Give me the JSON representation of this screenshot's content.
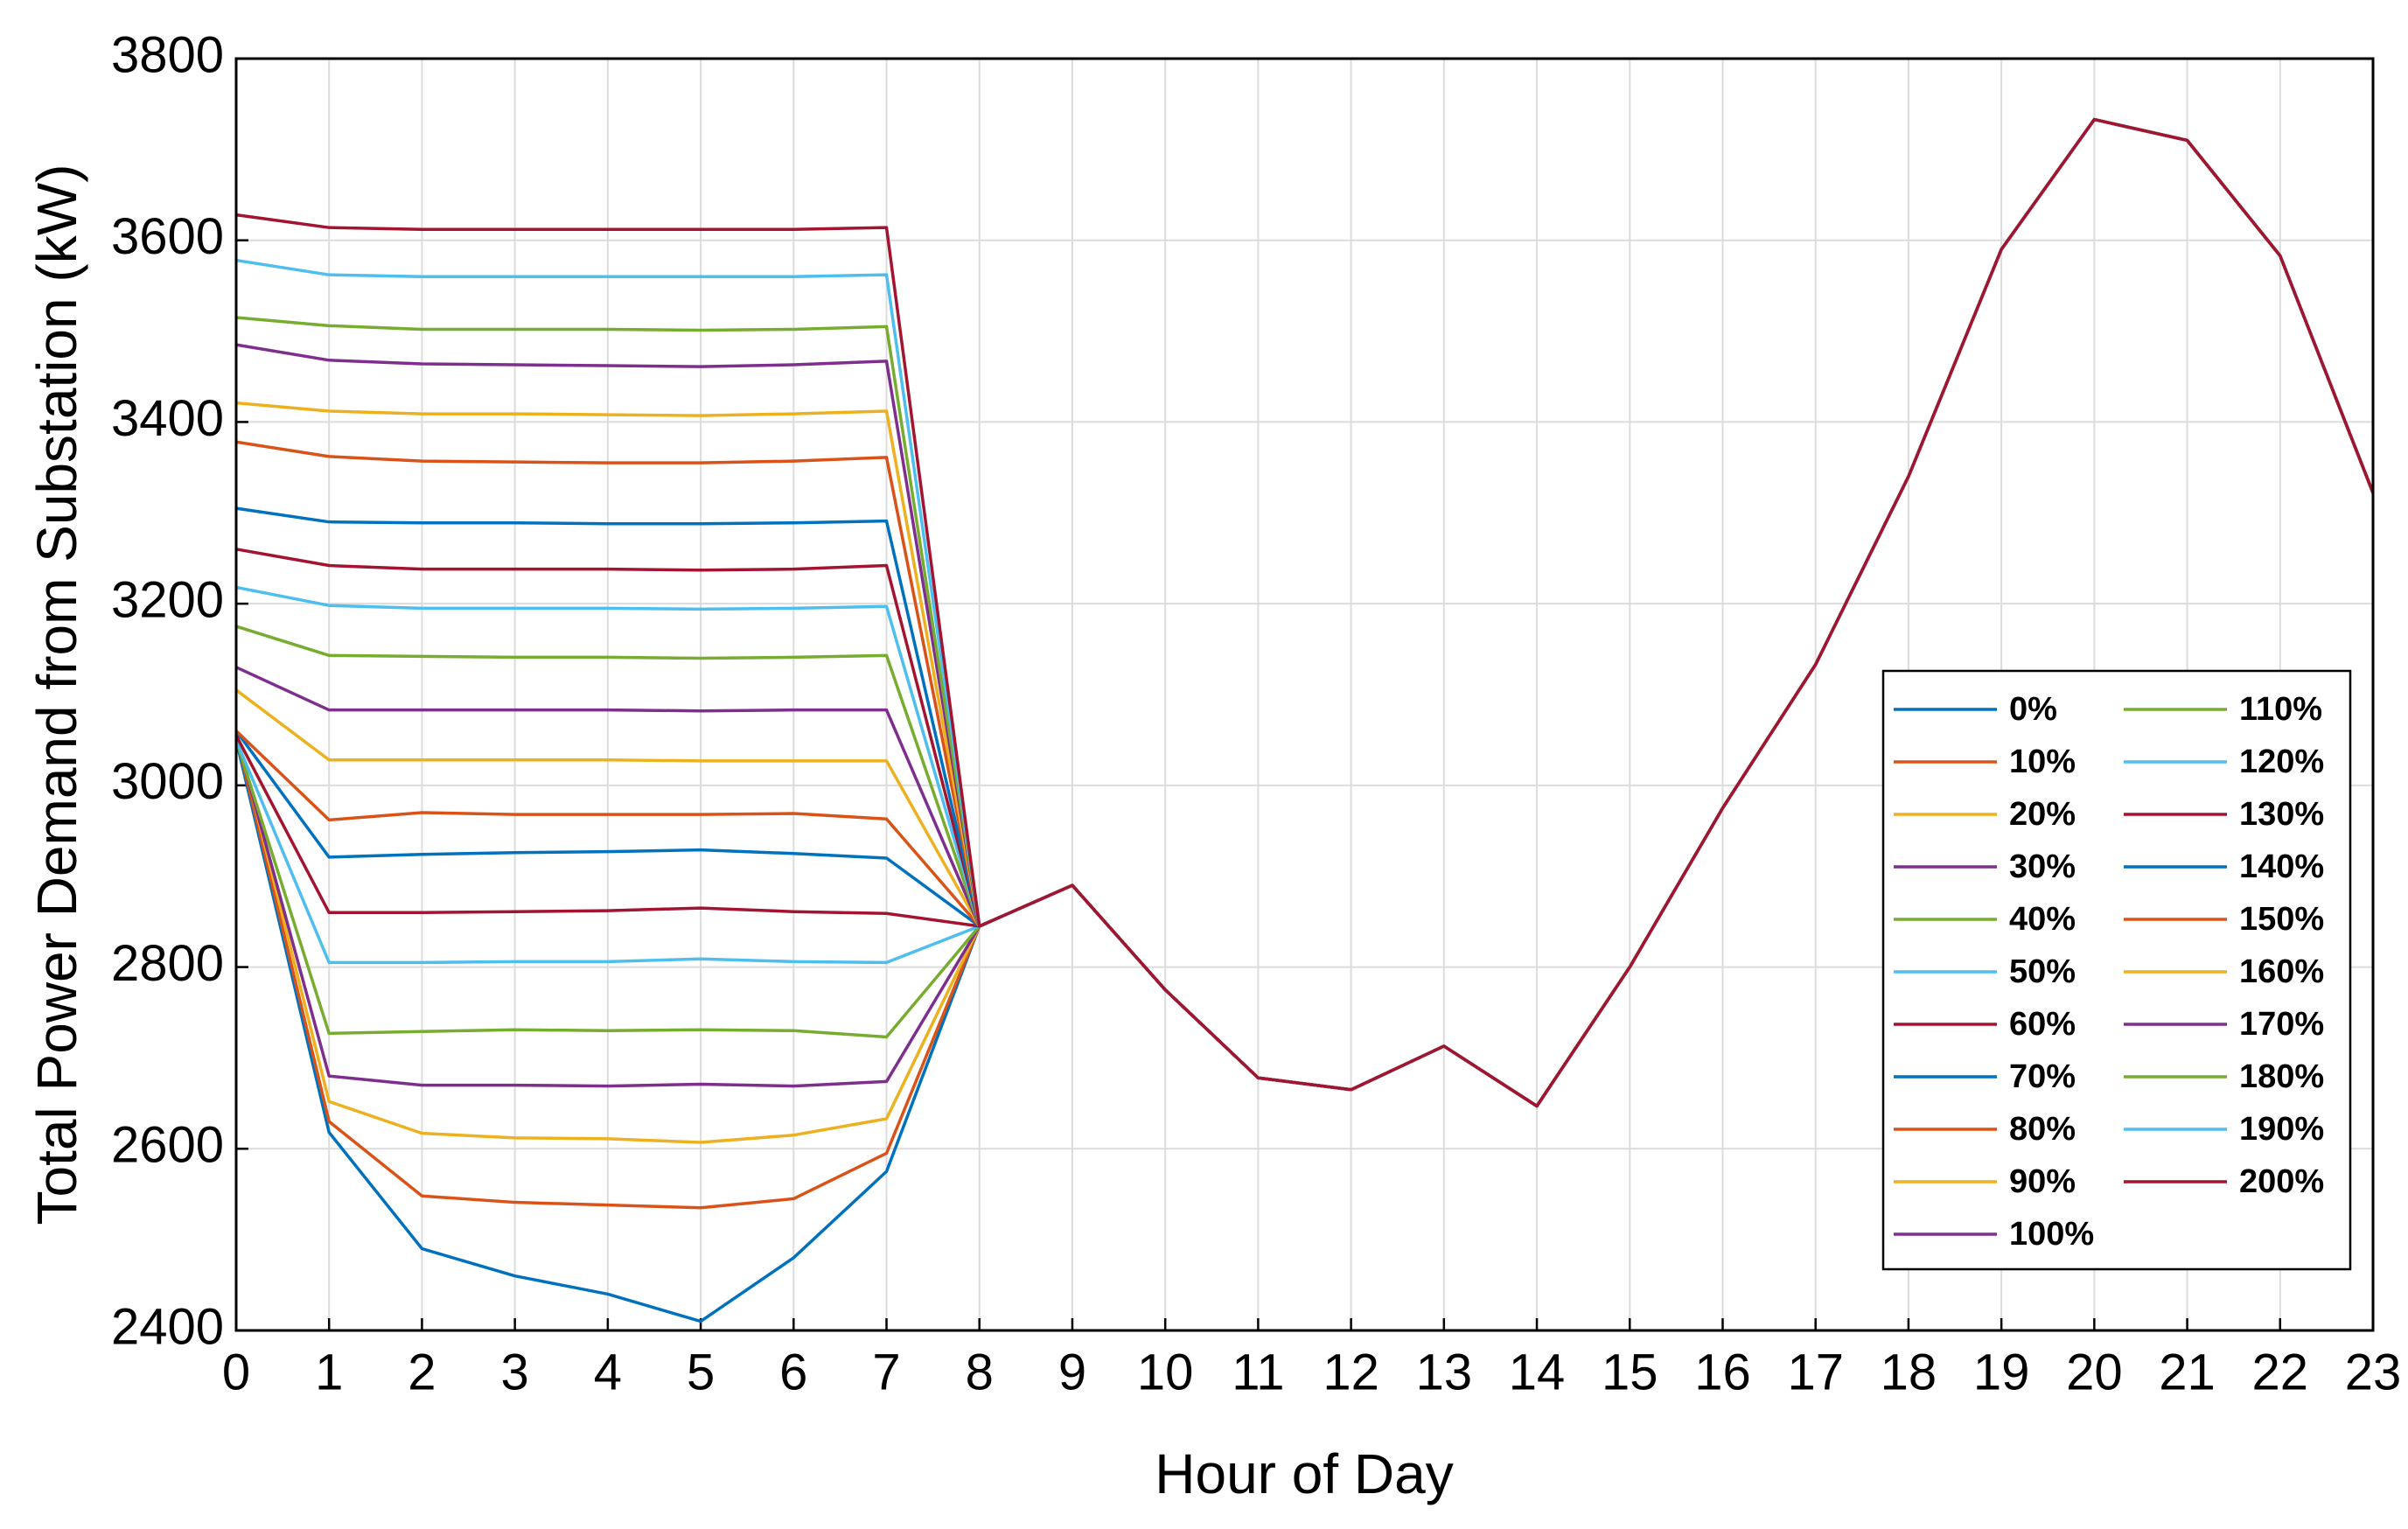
{
  "chart_data": {
    "type": "line",
    "xlabel": "Hour of Day",
    "ylabel": "Total Power Demand from Substation (kW)",
    "x": [
      0,
      1,
      2,
      3,
      4,
      5,
      6,
      7,
      8,
      9,
      10,
      11,
      12,
      13,
      14,
      15,
      16,
      17,
      18,
      19,
      20,
      21,
      22,
      23
    ],
    "xlim": [
      0,
      23
    ],
    "xticks": [
      0,
      1,
      2,
      3,
      4,
      5,
      6,
      7,
      8,
      9,
      10,
      11,
      12,
      13,
      14,
      15,
      16,
      17,
      18,
      19,
      20,
      21,
      22,
      23
    ],
    "ylim": [
      2400,
      3800
    ],
    "yticks": [
      2400,
      2600,
      2800,
      3000,
      3200,
      3400,
      3600,
      3800
    ],
    "grid": true,
    "legend_position": "right",
    "legend_columns": 2,
    "series": [
      {
        "name": "0%",
        "color": "#0072BD",
        "values": [
          3050,
          2618,
          2490,
          2460,
          2440,
          2410,
          2480,
          2575,
          2845,
          2890,
          2775,
          2678,
          2665,
          2713,
          2647,
          2800,
          2975,
          3133,
          3340,
          3590,
          3733,
          3710,
          3583,
          3322
        ]
      },
      {
        "name": "10%",
        "color": "#D95319",
        "values": [
          3055,
          2630,
          2548,
          2541,
          2538,
          2535,
          2545,
          2595,
          2845,
          2890,
          2775,
          2678,
          2665,
          2713,
          2647,
          2800,
          2975,
          3133,
          3340,
          3590,
          3733,
          3710,
          3583,
          3322
        ]
      },
      {
        "name": "20%",
        "color": "#EDB120",
        "values": [
          3060,
          2652,
          2617,
          2612,
          2611,
          2607,
          2615,
          2633,
          2845,
          2890,
          2775,
          2678,
          2665,
          2713,
          2647,
          2800,
          2975,
          3133,
          3340,
          3590,
          3733,
          3710,
          3583,
          3322
        ]
      },
      {
        "name": "30%",
        "color": "#7E2F8E",
        "values": [
          3055,
          2680,
          2670,
          2670,
          2669,
          2671,
          2669,
          2674,
          2845,
          2890,
          2775,
          2678,
          2665,
          2713,
          2647,
          2800,
          2975,
          3133,
          3340,
          3590,
          3733,
          3710,
          3583,
          3322
        ]
      },
      {
        "name": "40%",
        "color": "#77AC30",
        "values": [
          3050,
          2727,
          2729,
          2731,
          2730,
          2731,
          2730,
          2723,
          2845,
          2890,
          2775,
          2678,
          2665,
          2713,
          2647,
          2800,
          2975,
          3133,
          3340,
          3590,
          3733,
          3710,
          3583,
          3322
        ]
      },
      {
        "name": "50%",
        "color": "#4DBEEE",
        "values": [
          3050,
          2805,
          2805,
          2806,
          2806,
          2809,
          2806,
          2805,
          2845,
          2890,
          2775,
          2678,
          2665,
          2713,
          2647,
          2800,
          2975,
          3133,
          3340,
          3590,
          3733,
          3710,
          3583,
          3322
        ]
      },
      {
        "name": "60%",
        "color": "#A2142F",
        "values": [
          3055,
          2860,
          2860,
          2861,
          2862,
          2865,
          2861,
          2859,
          2845,
          2890,
          2775,
          2678,
          2665,
          2713,
          2647,
          2800,
          2975,
          3133,
          3340,
          3590,
          3733,
          3710,
          3583,
          3322
        ]
      },
      {
        "name": "70%",
        "color": "#0072BD",
        "values": [
          3060,
          2921,
          2924,
          2926,
          2927,
          2929,
          2925,
          2920,
          2845,
          2890,
          2775,
          2678,
          2665,
          2713,
          2647,
          2800,
          2975,
          3133,
          3340,
          3590,
          3733,
          3710,
          3583,
          3322
        ]
      },
      {
        "name": "80%",
        "color": "#D95319",
        "values": [
          3060,
          2962,
          2970,
          2968,
          2968,
          2968,
          2969,
          2963,
          2845,
          2890,
          2775,
          2678,
          2665,
          2713,
          2647,
          2800,
          2975,
          3133,
          3340,
          3590,
          3733,
          3710,
          3583,
          3322
        ]
      },
      {
        "name": "90%",
        "color": "#EDB120",
        "values": [
          3105,
          3028,
          3028,
          3028,
          3028,
          3027,
          3027,
          3027,
          2845,
          2890,
          2775,
          2678,
          2665,
          2713,
          2647,
          2800,
          2975,
          3133,
          3340,
          3590,
          3733,
          3710,
          3583,
          3322
        ]
      },
      {
        "name": "100%",
        "color": "#7E2F8E",
        "values": [
          3130,
          3083,
          3083,
          3083,
          3083,
          3082,
          3083,
          3083,
          2845,
          2890,
          2775,
          2678,
          2665,
          2713,
          2647,
          2800,
          2975,
          3133,
          3340,
          3590,
          3733,
          3710,
          3583,
          3322
        ]
      },
      {
        "name": "110%",
        "color": "#77AC30",
        "values": [
          3175,
          3143,
          3142,
          3141,
          3141,
          3140,
          3141,
          3143,
          2845,
          2890,
          2775,
          2678,
          2665,
          2713,
          2647,
          2800,
          2975,
          3133,
          3340,
          3590,
          3733,
          3710,
          3583,
          3322
        ]
      },
      {
        "name": "120%",
        "color": "#4DBEEE",
        "values": [
          3218,
          3198,
          3195,
          3195,
          3195,
          3194,
          3195,
          3197,
          2845,
          2890,
          2775,
          2678,
          2665,
          2713,
          2647,
          2800,
          2975,
          3133,
          3340,
          3590,
          3733,
          3710,
          3583,
          3322
        ]
      },
      {
        "name": "130%",
        "color": "#A2142F",
        "values": [
          3260,
          3242,
          3238,
          3238,
          3238,
          3237,
          3238,
          3242,
          2845,
          2890,
          2775,
          2678,
          2665,
          2713,
          2647,
          2800,
          2975,
          3133,
          3340,
          3590,
          3733,
          3710,
          3583,
          3322
        ]
      },
      {
        "name": "140%",
        "color": "#0072BD",
        "values": [
          3305,
          3290,
          3289,
          3289,
          3288,
          3288,
          3289,
          3291,
          2845,
          2890,
          2775,
          2678,
          2665,
          2713,
          2647,
          2800,
          2975,
          3133,
          3340,
          3590,
          3733,
          3710,
          3583,
          3322
        ]
      },
      {
        "name": "150%",
        "color": "#D95319",
        "values": [
          3378,
          3362,
          3357,
          3356,
          3355,
          3355,
          3357,
          3361,
          2845,
          2890,
          2775,
          2678,
          2665,
          2713,
          2647,
          2800,
          2975,
          3133,
          3340,
          3590,
          3733,
          3710,
          3583,
          3322
        ]
      },
      {
        "name": "160%",
        "color": "#EDB120",
        "values": [
          3421,
          3412,
          3409,
          3409,
          3408,
          3407,
          3409,
          3412,
          2845,
          2890,
          2775,
          2678,
          2665,
          2713,
          2647,
          2800,
          2975,
          3133,
          3340,
          3590,
          3733,
          3710,
          3583,
          3322
        ]
      },
      {
        "name": "170%",
        "color": "#7E2F8E",
        "values": [
          3485,
          3468,
          3464,
          3463,
          3462,
          3461,
          3463,
          3467,
          2845,
          2890,
          2775,
          2678,
          2665,
          2713,
          2647,
          2800,
          2975,
          3133,
          3340,
          3590,
          3733,
          3710,
          3583,
          3322
        ]
      },
      {
        "name": "180%",
        "color": "#77AC30",
        "values": [
          3515,
          3506,
          3502,
          3502,
          3502,
          3501,
          3502,
          3505,
          2845,
          2890,
          2775,
          2678,
          2665,
          2713,
          2647,
          2800,
          2975,
          3133,
          3340,
          3590,
          3733,
          3710,
          3583,
          3322
        ]
      },
      {
        "name": "190%",
        "color": "#4DBEEE",
        "values": [
          3578,
          3562,
          3560,
          3560,
          3560,
          3560,
          3560,
          3562,
          2845,
          2890,
          2775,
          2678,
          2665,
          2713,
          2647,
          2800,
          2975,
          3133,
          3340,
          3590,
          3733,
          3710,
          3583,
          3322
        ]
      },
      {
        "name": "200%",
        "color": "#A2142F",
        "values": [
          3628,
          3614,
          3612,
          3612,
          3612,
          3612,
          3612,
          3614,
          2845,
          2890,
          2775,
          2678,
          2665,
          2713,
          2647,
          2800,
          2975,
          3133,
          3340,
          3590,
          3733,
          3710,
          3583,
          3322
        ]
      }
    ]
  }
}
